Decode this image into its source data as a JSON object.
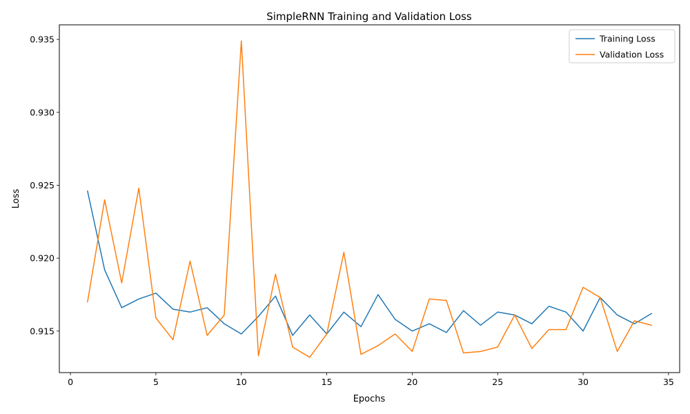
{
  "chart_data": {
    "type": "line",
    "title": "SimpleRNN Training and Validation Loss",
    "xlabel": "Epochs",
    "ylabel": "Loss",
    "xlim": [
      -0.65,
      35.65
    ],
    "ylim": [
      0.91215,
      0.936
    ],
    "xticks": [
      0,
      5,
      10,
      15,
      20,
      25,
      30,
      35
    ],
    "xtick_labels": [
      "0",
      "5",
      "10",
      "15",
      "20",
      "25",
      "30",
      "35"
    ],
    "yticks": [
      0.915,
      0.92,
      0.925,
      0.93,
      0.935
    ],
    "ytick_labels": [
      "0.915",
      "0.920",
      "0.925",
      "0.930",
      "0.935"
    ],
    "grid": false,
    "legend_position": "top-right",
    "x": [
      1,
      2,
      3,
      4,
      5,
      6,
      7,
      8,
      9,
      10,
      11,
      12,
      13,
      14,
      15,
      16,
      17,
      18,
      19,
      20,
      21,
      22,
      23,
      24,
      25,
      26,
      27,
      28,
      29,
      30,
      31,
      32,
      33,
      34
    ],
    "series": [
      {
        "name": "Training Loss",
        "color": "#1f77b4",
        "values": [
          0.9246,
          0.9192,
          0.9166,
          0.9172,
          0.9176,
          0.9165,
          0.9163,
          0.9166,
          0.9155,
          0.9148,
          0.916,
          0.9174,
          0.9147,
          0.9161,
          0.9148,
          0.9163,
          0.9153,
          0.9175,
          0.9158,
          0.915,
          0.9155,
          0.9149,
          0.9164,
          0.9154,
          0.9163,
          0.9161,
          0.9155,
          0.9167,
          0.9163,
          0.915,
          0.9173,
          0.9161,
          0.9155,
          0.9162
        ]
      },
      {
        "name": "Validation Loss",
        "color": "#ff7f0e",
        "values": [
          0.917,
          0.924,
          0.9183,
          0.9248,
          0.9159,
          0.9144,
          0.9198,
          0.9147,
          0.9161,
          0.9349,
          0.9133,
          0.9189,
          0.9139,
          0.9132,
          0.9148,
          0.9204,
          0.9134,
          0.914,
          0.9148,
          0.9136,
          0.9172,
          0.9171,
          0.9135,
          0.9136,
          0.9139,
          0.9161,
          0.9138,
          0.9151,
          0.9151,
          0.918,
          0.9173,
          0.9136,
          0.9157,
          0.9154
        ]
      }
    ]
  }
}
